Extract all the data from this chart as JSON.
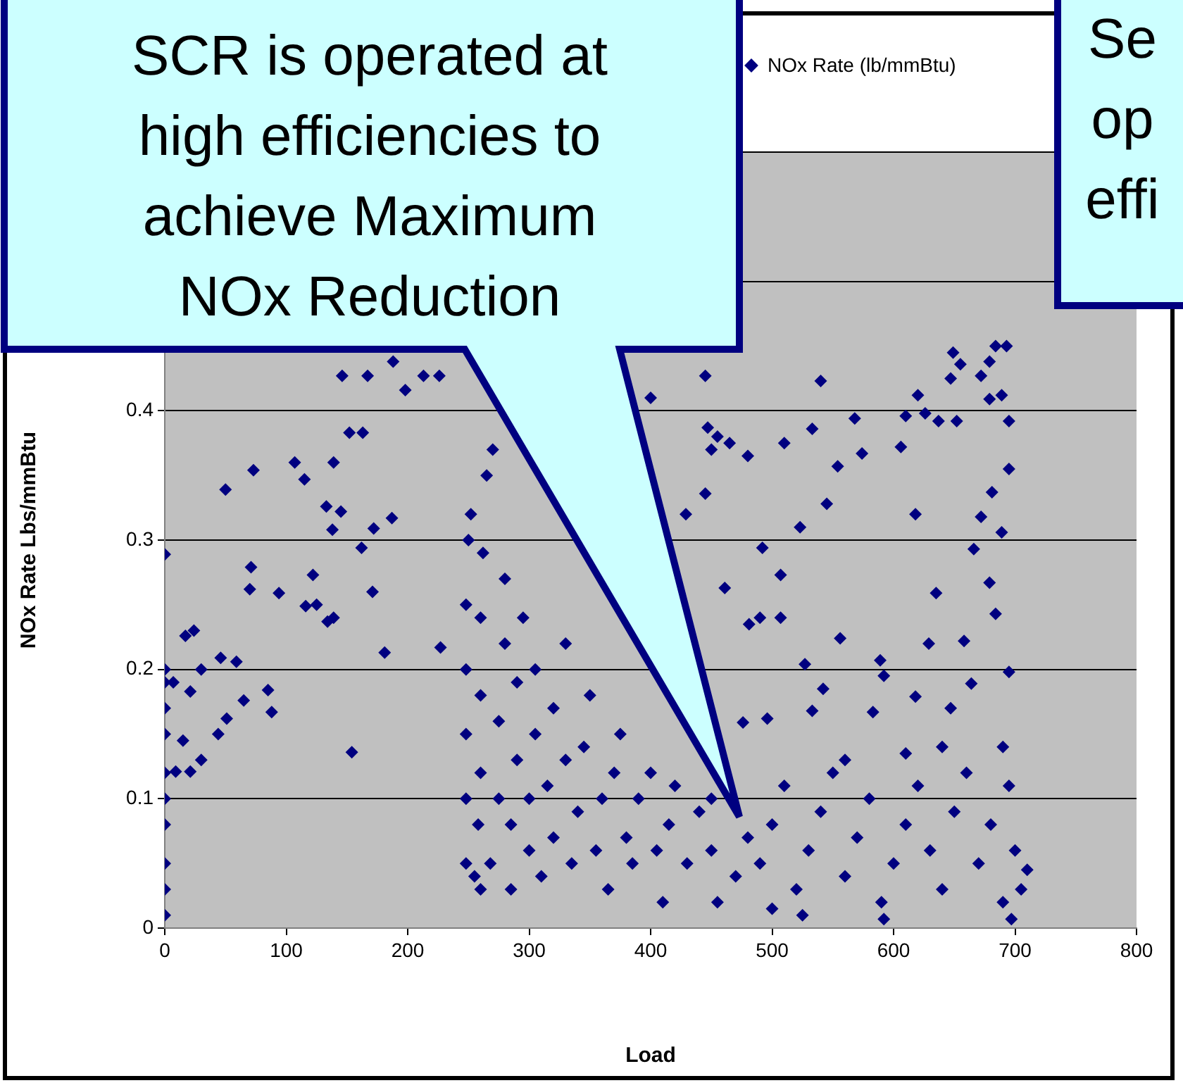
{
  "chart_data": {
    "type": "scatter",
    "xlabel": "Load",
    "ylabel": "NOx Rate Lbs/mmBtu",
    "xlim": [
      0,
      800
    ],
    "xticks": [
      0,
      100,
      200,
      300,
      400,
      500,
      600,
      700,
      800
    ],
    "ylim": [
      0,
      0.6
    ],
    "yticks": [
      0,
      0.1,
      0.2,
      0.3,
      0.4,
      {
        "value": 0.5,
        "label": null
      },
      {
        "value": 0.6,
        "label": null
      }
    ],
    "grid": "y",
    "legend": "top",
    "marker": "diamond",
    "annotations": [
      "SCR is operated at high efficiencies to achieve Maximum NOx Reduction",
      "Se\nop\neffi"
    ],
    "series": [
      {
        "name": "NOx Rate (lb/mmBtu)",
        "color": "#000080",
        "x": [
          0,
          0,
          0,
          0,
          0,
          0,
          0,
          0,
          0,
          0,
          0,
          7,
          9,
          15,
          17,
          21,
          21,
          24,
          30,
          30,
          44,
          46,
          51,
          59,
          65,
          85,
          88,
          71,
          70,
          94,
          122,
          125,
          116,
          139,
          134,
          154,
          181,
          227,
          171,
          162,
          172,
          187,
          152,
          163,
          146,
          167,
          188,
          198,
          213,
          226,
          50,
          73,
          107,
          115,
          139,
          133,
          138,
          145,
          248,
          248,
          248,
          248,
          248,
          250,
          252,
          255,
          260,
          258,
          260,
          260,
          260,
          262,
          265,
          270,
          268,
          275,
          275,
          280,
          280,
          285,
          285,
          290,
          290,
          295,
          300,
          300,
          305,
          305,
          310,
          315,
          320,
          320,
          330,
          330,
          335,
          340,
          345,
          350,
          355,
          360,
          365,
          370,
          375,
          380,
          385,
          390,
          400,
          405,
          410,
          415,
          420,
          430,
          440,
          450,
          455,
          450,
          470,
          480,
          445,
          447,
          450,
          455,
          465,
          480,
          445,
          429,
          400,
          461,
          492,
          507,
          481,
          490,
          507,
          523,
          540,
          533,
          510,
          545,
          554,
          568,
          574,
          556,
          527,
          589,
          592,
          606,
          618,
          620,
          610,
          626,
          637,
          649,
          647,
          652,
          655,
          672,
          684,
          693,
          679,
          689,
          679,
          695,
          695,
          681,
          672,
          689,
          666,
          679,
          684,
          635,
          629,
          658,
          695,
          664,
          647,
          618,
          583,
          542,
          533,
          476,
          496,
          490,
          500,
          510,
          520,
          530,
          540,
          550,
          560,
          570,
          580,
          590,
          600,
          610,
          620,
          630,
          640,
          650,
          660,
          670,
          680,
          690,
          695,
          700,
          705,
          710,
          690,
          610,
          640,
          560,
          525,
          592,
          697,
          500
        ],
        "values": [
          0.01,
          0.03,
          0.05,
          0.08,
          0.1,
          0.12,
          0.15,
          0.17,
          0.19,
          0.2,
          0.289,
          0.19,
          0.121,
          0.145,
          0.226,
          0.183,
          0.121,
          0.23,
          0.2,
          0.13,
          0.15,
          0.209,
          0.162,
          0.206,
          0.176,
          0.184,
          0.167,
          0.279,
          0.262,
          0.259,
          0.273,
          0.25,
          0.249,
          0.24,
          0.237,
          0.136,
          0.213,
          0.217,
          0.26,
          0.294,
          0.309,
          0.317,
          0.383,
          0.383,
          0.427,
          0.427,
          0.438,
          0.416,
          0.427,
          0.427,
          0.339,
          0.354,
          0.36,
          0.347,
          0.36,
          0.326,
          0.308,
          0.322,
          0.05,
          0.1,
          0.15,
          0.2,
          0.25,
          0.3,
          0.32,
          0.04,
          0.03,
          0.08,
          0.12,
          0.18,
          0.24,
          0.29,
          0.35,
          0.37,
          0.05,
          0.1,
          0.16,
          0.22,
          0.27,
          0.03,
          0.08,
          0.13,
          0.19,
          0.24,
          0.06,
          0.1,
          0.15,
          0.2,
          0.04,
          0.11,
          0.17,
          0.07,
          0.22,
          0.13,
          0.05,
          0.09,
          0.14,
          0.18,
          0.06,
          0.1,
          0.03,
          0.12,
          0.15,
          0.07,
          0.05,
          0.1,
          0.12,
          0.06,
          0.02,
          0.08,
          0.11,
          0.05,
          0.09,
          0.06,
          0.02,
          0.1,
          0.04,
          0.07,
          0.427,
          0.387,
          0.37,
          0.38,
          0.375,
          0.365,
          0.336,
          0.32,
          0.41,
          0.263,
          0.294,
          0.273,
          0.235,
          0.24,
          0.24,
          0.31,
          0.423,
          0.386,
          0.375,
          0.328,
          0.357,
          0.394,
          0.367,
          0.224,
          0.204,
          0.207,
          0.195,
          0.372,
          0.32,
          0.412,
          0.396,
          0.398,
          0.392,
          0.445,
          0.425,
          0.392,
          0.436,
          0.427,
          0.45,
          0.45,
          0.438,
          0.412,
          0.409,
          0.392,
          0.355,
          0.337,
          0.318,
          0.306,
          0.293,
          0.267,
          0.243,
          0.259,
          0.22,
          0.222,
          0.198,
          0.189,
          0.17,
          0.179,
          0.167,
          0.185,
          0.168,
          0.159,
          0.162,
          0.05,
          0.08,
          0.11,
          0.03,
          0.06,
          0.09,
          0.12,
          0.04,
          0.07,
          0.1,
          0.02,
          0.05,
          0.08,
          0.11,
          0.06,
          0.03,
          0.09,
          0.12,
          0.05,
          0.08,
          0.14,
          0.11,
          0.06,
          0.03,
          0.045,
          0.02,
          0.135,
          0.14,
          0.13,
          0.01,
          0.007,
          0.007,
          0.015
        ]
      }
    ]
  }
}
